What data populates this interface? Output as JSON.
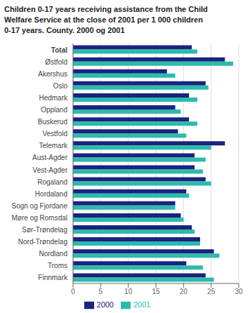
{
  "chart_data": {
    "type": "bar",
    "orientation": "horizontal",
    "title": "Children 0-17 years receiving assistance from the Child\nWelfare Service at the close of 2001 per 1 000 children\n0-17 years. County. 2000 og 2001",
    "categories": [
      "Total",
      "Østfold",
      "Akershus",
      "Oslo",
      "Hedmark",
      "Oppland",
      "Buskerud",
      "Vestfold",
      "Telemark",
      "Aust-Agder",
      "Vest-Agder",
      "Rogaland",
      "Hordaland",
      "Sogn og Fjordane",
      "Møre og Romsdal",
      "Sør-Trøndelag",
      "Nord-Trøndelag",
      "Nordland",
      "Troms",
      "Finnmark"
    ],
    "series": [
      {
        "name": "2000",
        "color": "#1a237e",
        "values": [
          21.5,
          27.5,
          17.0,
          24.0,
          21.0,
          18.5,
          21.0,
          19.0,
          27.5,
          22.0,
          22.0,
          24.0,
          20.5,
          18.5,
          19.5,
          21.5,
          23.0,
          25.5,
          20.5,
          24.0
        ]
      },
      {
        "name": "2001",
        "color": "#2bbbad",
        "values": [
          22.5,
          29.0,
          18.5,
          24.5,
          22.5,
          19.5,
          22.5,
          20.5,
          25.0,
          24.0,
          23.5,
          25.0,
          21.0,
          18.5,
          20.0,
          22.0,
          23.0,
          26.5,
          23.5,
          25.5
        ]
      }
    ],
    "xlim": [
      0,
      30
    ],
    "xticks": [
      0,
      5,
      10,
      15,
      20,
      25,
      30
    ],
    "grid": true,
    "legend": "bottom"
  }
}
